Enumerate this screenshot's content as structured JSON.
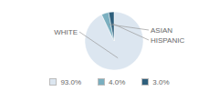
{
  "chart_data": {
    "type": "pie",
    "categories": [
      "WHITE",
      "ASIAN",
      "HISPANIC"
    ],
    "values": [
      93.0,
      4.0,
      3.0
    ],
    "value_labels": [
      "93.0%",
      "4.0%",
      "3.0%"
    ],
    "colors": [
      "#dce6f0",
      "#7aafc0",
      "#2e5f7c"
    ],
    "legend": "bottom"
  }
}
